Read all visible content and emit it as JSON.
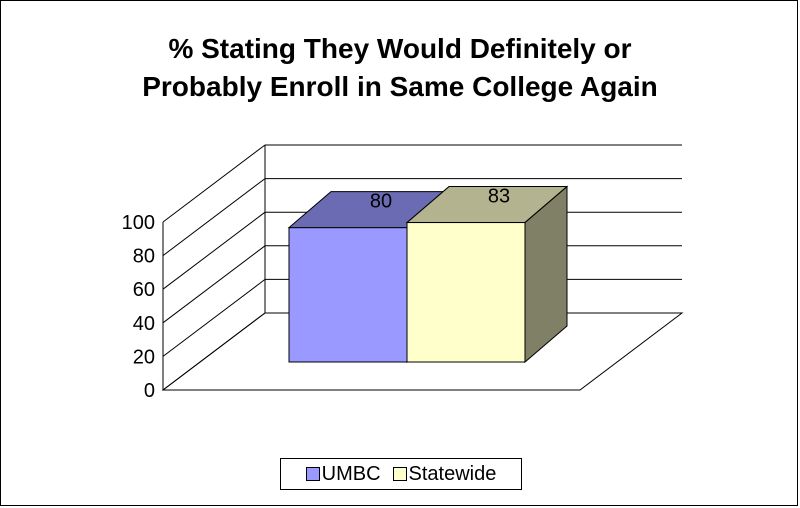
{
  "chart_data": {
    "type": "bar",
    "title_lines": [
      "% Stating They Would Definitely or",
      "Probably Enroll in Same College Again"
    ],
    "categories": [
      ""
    ],
    "series": [
      {
        "name": "UMBC",
        "values": [
          80
        ],
        "color": "#9999ff",
        "top_color": "#6b6bb3",
        "side_color": "#4d4d80"
      },
      {
        "name": "Statewide",
        "values": [
          83
        ],
        "color": "#ffffcc",
        "top_color": "#b3b38f",
        "side_color": "#808066"
      }
    ],
    "ylim": [
      0,
      100
    ],
    "yticks": [
      0,
      20,
      40,
      60,
      80,
      100
    ],
    "grid": true,
    "legend_position": "bottom",
    "three_d": true
  }
}
